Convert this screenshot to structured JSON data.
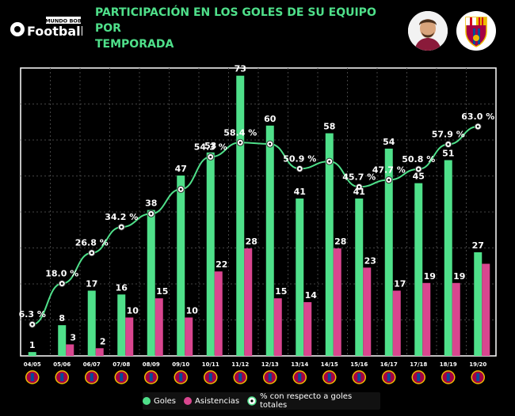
{
  "brand": {
    "small": "MUNDO BOB",
    "main": "Football"
  },
  "title_line1": "PARTICIPACIÓN EN LOS GOLES DE SU EQUIPO POR",
  "title_line2": "TEMPORADA",
  "colors": {
    "goles": "#4fe08a",
    "asistencias": "#d9468f",
    "line": "#4fe08a",
    "title": "#4fe08a",
    "grid": "#444444"
  },
  "icons": {
    "player": "player-portrait-icon",
    "club": "fc-barcelona-crest-icon"
  },
  "chart_data": {
    "type": "bar",
    "categories": [
      "04/05",
      "05/06",
      "06/07",
      "07/08",
      "08/09",
      "09/10",
      "10/11",
      "11/12",
      "12/13",
      "13/14",
      "14/15",
      "15/16",
      "16/17",
      "17/18",
      "18/19",
      "19/20"
    ],
    "series": [
      {
        "name": "Goles",
        "type": "bar",
        "values": [
          1,
          8,
          17,
          16,
          38,
          47,
          53,
          73,
          60,
          41,
          58,
          41,
          54,
          45,
          51,
          27
        ]
      },
      {
        "name": "Asistencias",
        "type": "bar",
        "values": [
          0,
          3,
          2,
          10,
          15,
          10,
          22,
          28,
          15,
          14,
          28,
          23,
          17,
          19,
          19,
          24
        ]
      },
      {
        "name": "% con respecto a goles totales",
        "type": "line",
        "values": [
          6.3,
          18.0,
          26.8,
          34.2,
          38.0,
          45.0,
          54.3,
          58.4,
          58.0,
          50.9,
          53.0,
          45.7,
          47.7,
          50.8,
          57.9,
          63.0
        ]
      }
    ],
    "bar_labels_goles": [
      "1",
      "8",
      "17",
      "16",
      "38",
      "47",
      "53",
      "73",
      "60",
      "41",
      "58",
      "41",
      "54",
      "45",
      "51",
      "27"
    ],
    "bar_labels_asistencias": [
      "",
      "3",
      "2",
      "10",
      "15",
      "10",
      "22",
      "28",
      "15",
      "14",
      "28",
      "23",
      "17",
      "19",
      "19",
      ""
    ],
    "line_labels": [
      "6.3 %",
      "18.0 %",
      "26.8 %",
      "34.2 %",
      "",
      "",
      "54.3 %",
      "58.4 %",
      "",
      "50.9 %",
      "",
      "45.7 %",
      "47.7 %",
      "50.8 %",
      "57.9 %",
      "63.0 %"
    ],
    "ylim": [
      0,
      75
    ],
    "grid": true,
    "legend_position": "bottom"
  },
  "legend": {
    "goles": "Goles",
    "asistencias": "Asistencias",
    "porcentaje": "% con respecto a goles totales"
  }
}
